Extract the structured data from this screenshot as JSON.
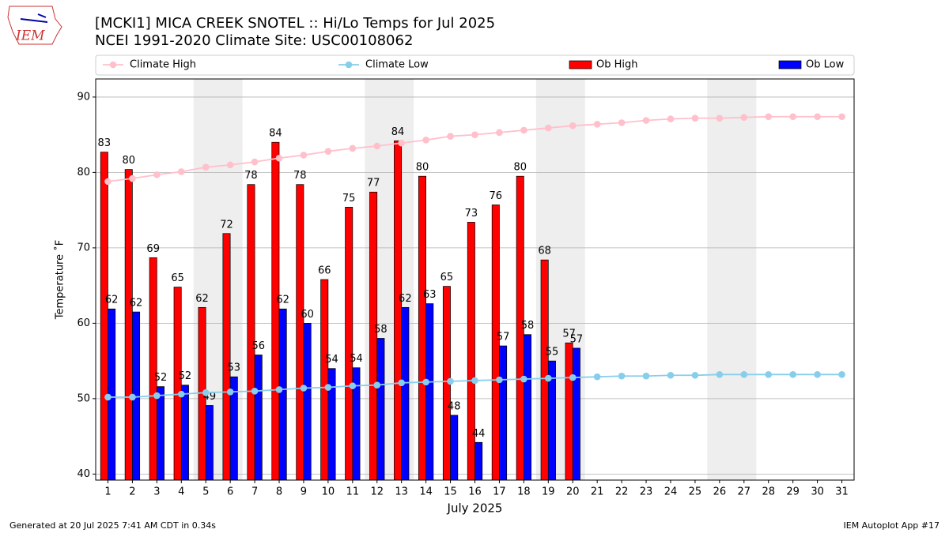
{
  "logo": "IEM",
  "footer": {
    "left": "Generated at 20 Jul 2025 7:41 AM CDT in 0.34s",
    "right": "IEM Autoplot App #17"
  },
  "chart_data": {
    "type": "bar",
    "title": "[MCKI1] MICA CREEK SNOTEL :: Hi/Lo Temps for Jul 2025",
    "subtitle": "NCEI 1991-2020 Climate Site: USC00108062",
    "xlabel": "July 2025",
    "ylabel": "Temperature ˚F",
    "x": [
      1,
      2,
      3,
      4,
      5,
      6,
      7,
      8,
      9,
      10,
      11,
      12,
      13,
      14,
      15,
      16,
      17,
      18,
      19,
      20,
      21,
      22,
      23,
      24,
      25,
      26,
      27,
      28,
      29,
      30,
      31
    ],
    "xlim": [
      0.5,
      31.5
    ],
    "ylim": [
      39.2,
      92.4
    ],
    "yticks": [
      40,
      50,
      60,
      70,
      80,
      90
    ],
    "grid": true,
    "legend": "top",
    "shaded": [
      [
        4.5,
        6.5
      ],
      [
        11.5,
        13.5
      ],
      [
        18.5,
        20.5
      ],
      [
        25.5,
        27.5
      ]
    ],
    "shade_color": "#eeeeee",
    "series": [
      {
        "name": "Climate High",
        "kind": "line",
        "color": "#ffc0cb",
        "values": [
          78.8,
          79.2,
          79.7,
          80.1,
          80.7,
          81.0,
          81.4,
          81.9,
          82.3,
          82.8,
          83.2,
          83.5,
          83.9,
          84.3,
          84.8,
          85.0,
          85.3,
          85.6,
          85.9,
          86.2,
          86.4,
          86.6,
          86.9,
          87.1,
          87.2,
          87.2,
          87.3,
          87.4,
          87.4,
          87.4,
          87.4
        ]
      },
      {
        "name": "Climate Low",
        "kind": "line",
        "color": "#87ceeb",
        "values": [
          50.2,
          50.2,
          50.4,
          50.6,
          50.8,
          50.9,
          51.0,
          51.2,
          51.4,
          51.5,
          51.7,
          51.8,
          52.1,
          52.2,
          52.3,
          52.4,
          52.5,
          52.6,
          52.7,
          52.8,
          52.9,
          53.0,
          53.0,
          53.1,
          53.1,
          53.2,
          53.2,
          53.2,
          53.2,
          53.2,
          53.2
        ]
      },
      {
        "name": "Ob High",
        "kind": "bar",
        "color": "#ff0000",
        "values": [
          82.7,
          80.4,
          68.7,
          64.8,
          62.1,
          71.9,
          78.4,
          84.0,
          78.4,
          65.8,
          75.4,
          77.4,
          84.2,
          79.5,
          64.9,
          73.4,
          75.7,
          79.5,
          68.4,
          57.4,
          null,
          null,
          null,
          null,
          null,
          null,
          null,
          null,
          null,
          null,
          null
        ],
        "value_labels": [
          83,
          80,
          69,
          65,
          62,
          72,
          78,
          84,
          78,
          66,
          75,
          77,
          84,
          80,
          65,
          73,
          76,
          80,
          68,
          57,
          null,
          null,
          null,
          null,
          null,
          null,
          null,
          null,
          null,
          null,
          null
        ]
      },
      {
        "name": "Ob Low",
        "kind": "bar",
        "color": "#0000ff",
        "values": [
          61.9,
          61.5,
          51.6,
          51.8,
          49.1,
          52.9,
          55.8,
          61.9,
          60.0,
          54.0,
          54.1,
          58.0,
          62.1,
          62.6,
          47.8,
          44.2,
          57.0,
          58.5,
          55.0,
          56.7,
          null,
          null,
          null,
          null,
          null,
          null,
          null,
          null,
          null,
          null,
          null
        ],
        "value_labels": [
          62,
          62,
          52,
          52,
          49,
          53,
          56,
          62,
          60,
          54,
          54,
          58,
          62,
          63,
          48,
          44,
          57,
          58,
          55,
          57,
          null,
          null,
          null,
          null,
          null,
          null,
          null,
          null,
          null,
          null,
          null
        ]
      }
    ]
  }
}
